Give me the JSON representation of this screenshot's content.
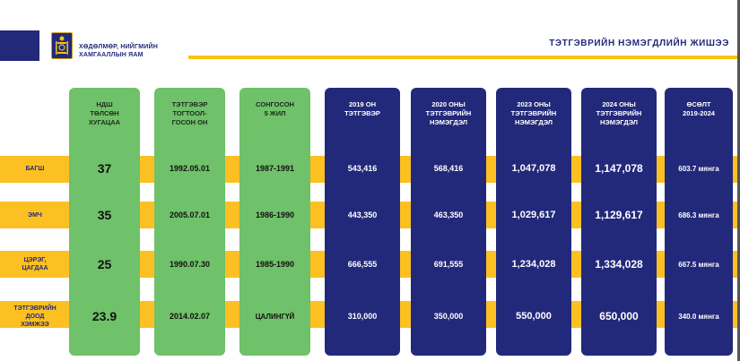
{
  "header": {
    "ministry_line1": "ХӨДӨЛМӨР, НИЙГМИЙН",
    "ministry_line2": "ХАМГААЛЛЫН ЯАМ",
    "title": "ТЭТГЭВРИЙН НЭМЭГДЛИЙН ЖИШЭЭ"
  },
  "columns": [
    {
      "header_lines": [
        "НДШ",
        "ТӨЛСӨН",
        "ХУГАЦАА"
      ]
    },
    {
      "header_lines": [
        "ТЭТГЭВЭР",
        "ТОГТООЛ-",
        "ГОСОН ОН"
      ]
    },
    {
      "header_lines": [
        "СОНГОСОН",
        "5 ЖИЛ"
      ]
    },
    {
      "header_lines": [
        "2019 ОН",
        "ТЭТГЭВЭР"
      ]
    },
    {
      "header_lines": [
        "2020 ОНЫ",
        "ТЭТГЭВРИЙН",
        "НЭМЭГДЭЛ"
      ]
    },
    {
      "header_lines": [
        "2023 ОНЫ",
        "ТЭТГЭВРИЙН",
        "НЭМЭГДЭЛ"
      ]
    },
    {
      "header_lines": [
        "2024 ОНЫ",
        "ТЭТГЭВРИЙН",
        "НЭМЭГДЭЛ"
      ]
    },
    {
      "header_lines": [
        "ӨСӨЛТ",
        "2019-2024"
      ]
    }
  ],
  "rows": [
    {
      "label_lines": [
        "БАГШ"
      ],
      "cells": [
        "37",
        "1992.05.01",
        "1987-1991",
        "543,416",
        "568,416",
        "1,047,078",
        "1,147,078",
        "603.7 мянга"
      ]
    },
    {
      "label_lines": [
        "ЭМЧ"
      ],
      "cells": [
        "35",
        "2005.07.01",
        "1986-1990",
        "443,350",
        "463,350",
        "1,029,617",
        "1,129,617",
        "686.3 мянга"
      ]
    },
    {
      "label_lines": [
        "ЦЭРЭГ,",
        "ЦАГДАА"
      ],
      "cells": [
        "25",
        "1990.07.30",
        "1985-1990",
        "666,555",
        "691,555",
        "1,234,028",
        "1,334,028",
        "667.5 мянга"
      ]
    },
    {
      "label_lines": [
        "ТЭТГЭВРИЙН",
        "ДООД",
        "ХЭМЖЭЭ"
      ],
      "cells": [
        "23.9",
        "2014.02.07",
        "ЦАЛИНГҮЙ",
        "310,000",
        "350,000",
        "550,000",
        "650,000",
        "340.0 мянга"
      ]
    }
  ],
  "colors": {
    "navy": "#22297a",
    "green": "#6fc16a",
    "band": "#fcc023",
    "accent_line": "#f7c30f"
  }
}
